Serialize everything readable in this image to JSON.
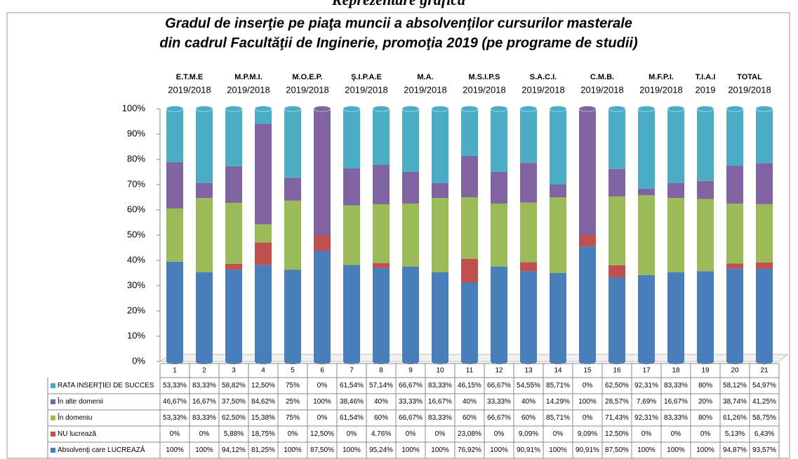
{
  "page_heading": "Reprezentare grafică",
  "chart_data": {
    "type": "bar",
    "stacking": "percent",
    "title": [
      "Gradul de inserţie pe piaţa muncii a absolvenţilor cursurilor masterale",
      "din cadrul Facultăţii de Inginerie, promoţia 2019 (pe programe de studii)"
    ],
    "groups": [
      {
        "name": "E.T.M.E",
        "year": "2019/2018"
      },
      {
        "name": "M.P.M.I.",
        "year": "2019/2018"
      },
      {
        "name": "M.O.E.P.",
        "year": "2019/2018"
      },
      {
        "name": "Ş.I.P.A.E",
        "year": "2019/2018"
      },
      {
        "name": "M.A.",
        "year": "2019/2018"
      },
      {
        "name": "M.S.I.P.S",
        "year": "2019/2018"
      },
      {
        "name": "S.A.C.I.",
        "year": "2019/2018"
      },
      {
        "name": "C.M.B.",
        "year": "2019/2018"
      },
      {
        "name": "M.F.P.I.",
        "year": "2019/2018"
      },
      {
        "name": "T.I.A.I",
        "year": "2019"
      },
      {
        "name": "TOTAL",
        "year": "2019/2018"
      }
    ],
    "categories": [
      "1",
      "2",
      "3",
      "4",
      "5",
      "6",
      "7",
      "8",
      "9",
      "10",
      "11",
      "12",
      "13",
      "14",
      "15",
      "16",
      "17",
      "18",
      "19",
      "20",
      "21"
    ],
    "ylim": [
      0,
      100
    ],
    "yticks": [
      {
        "value": 0,
        "label": "0%"
      },
      {
        "value": 10,
        "label": "10%"
      },
      {
        "value": 20,
        "label": "20%"
      },
      {
        "value": 30,
        "label": "30%"
      },
      {
        "value": 40,
        "label": "40%"
      },
      {
        "value": 50,
        "label": "50%"
      },
      {
        "value": 60,
        "label": "60%"
      },
      {
        "value": 70,
        "label": "70%"
      },
      {
        "value": 80,
        "label": "80%"
      },
      {
        "value": 90,
        "label": "90%"
      },
      {
        "value": 100,
        "label": "100%"
      }
    ],
    "series": [
      {
        "name": "RATA INSERŢIEI DE  SUCCES",
        "color": "#4bacc6",
        "values": [
          53.33,
          83.33,
          58.82,
          12.5,
          75,
          0,
          61.54,
          57.14,
          66.67,
          83.33,
          46.15,
          66.67,
          54.55,
          85.71,
          0,
          62.5,
          92.31,
          83.33,
          80,
          58.12,
          54.97
        ],
        "value_labels": [
          "53,33%",
          "83,33%",
          "58,82%",
          "12,50%",
          "75%",
          "0%",
          "61,54%",
          "57,14%",
          "66,67%",
          "83,33%",
          "46,15%",
          "66,67%",
          "54,55%",
          "85,71%",
          "0%",
          "62,50%",
          "92,31%",
          "83,33%",
          "80%",
          "58,12%",
          "54,97%"
        ]
      },
      {
        "name": "În alte domenii",
        "color": "#8064a2",
        "values": [
          46.67,
          16.67,
          37.5,
          84.62,
          25,
          100,
          38.46,
          40,
          33.33,
          16.67,
          40,
          33.33,
          40,
          14.29,
          100,
          28.57,
          7.69,
          16.67,
          20,
          38.74,
          41.25
        ],
        "value_labels": [
          "46,67%",
          "16,67%",
          "37,50%",
          "84,62%",
          "25%",
          "100%",
          "38,46%",
          "40%",
          "33,33%",
          "16,67%",
          "40%",
          "33,33%",
          "40%",
          "14,29%",
          "100%",
          "28,57%",
          "7,69%",
          "16,67%",
          "20%",
          "38,74%",
          "41,25%"
        ]
      },
      {
        "name": "În domeniu",
        "color": "#9bbb59",
        "values": [
          53.33,
          83.33,
          62.5,
          15.38,
          75,
          0,
          61.54,
          60,
          66.67,
          83.33,
          60,
          66.67,
          60,
          85.71,
          0,
          71.43,
          92.31,
          83.33,
          80,
          61.26,
          58.75
        ],
        "value_labels": [
          "53,33%",
          "83,33%",
          "62,50%",
          "15,38%",
          "75%",
          "0%",
          "61,54%",
          "60%",
          "66,67%",
          "83,33%",
          "60%",
          "66,67%",
          "60%",
          "85,71%",
          "0%",
          "71,43%",
          "92,31%",
          "83,33%",
          "80%",
          "61,26%",
          "58,75%"
        ]
      },
      {
        "name": "NU lucrează",
        "color": "#c0504d",
        "values": [
          0,
          0,
          5.88,
          18.75,
          0,
          12.5,
          0,
          4.76,
          0,
          0,
          23.08,
          0,
          9.09,
          0,
          9.09,
          12.5,
          0,
          0,
          0,
          5.13,
          6.43
        ],
        "value_labels": [
          "0%",
          "0%",
          "5,88%",
          "18,75%",
          "0%",
          "12,50%",
          "0%",
          "4,76%",
          "0%",
          "0%",
          "23,08%",
          "0%",
          "9,09%",
          "0%",
          "9,09%",
          "12,50%",
          "0%",
          "0%",
          "0%",
          "5,13%",
          "6,43%"
        ]
      },
      {
        "name": "Absolvenţi care LUCREAZĂ",
        "color": "#4a7ebb",
        "values": [
          100,
          100,
          94.12,
          81.25,
          100,
          87.5,
          100,
          95.24,
          100,
          100,
          76.92,
          100,
          90.91,
          100,
          90.91,
          87.5,
          100,
          100,
          100,
          94.87,
          93.57
        ],
        "value_labels": [
          "100%",
          "100%",
          "94,12%",
          "81,25%",
          "100%",
          "87,50%",
          "100%",
          "95,24%",
          "100%",
          "100%",
          "76,92%",
          "100%",
          "90,91%",
          "100%",
          "90,91%",
          "87,50%",
          "100%",
          "100%",
          "100%",
          "94,87%",
          "93,57%"
        ]
      }
    ]
  }
}
